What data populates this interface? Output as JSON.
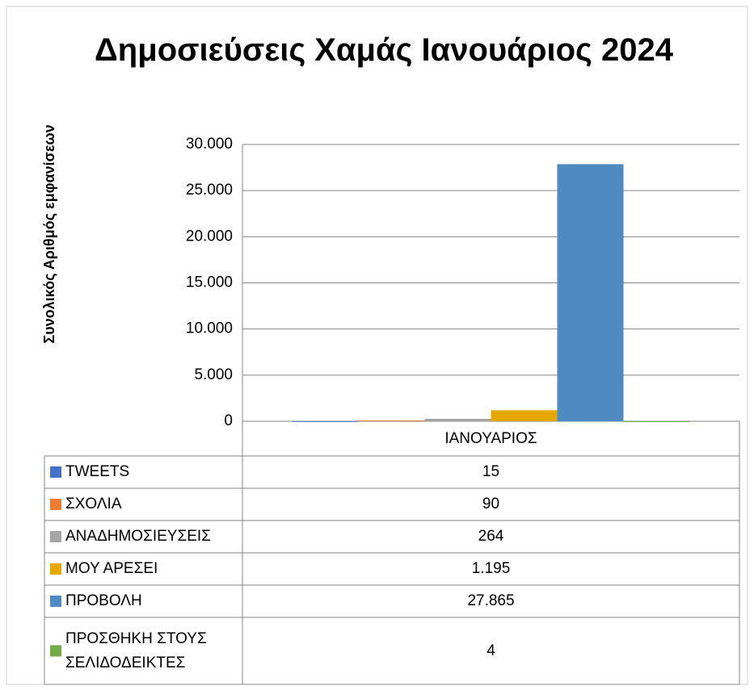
{
  "chart_data": {
    "type": "bar",
    "title": "Δημοσιεύσεις  Χαμάς Ιανουάριος 2024",
    "y_label": "Συνολικός Αριθμός εμφανίσεων",
    "categories": [
      "ΙΑΝΟΥΑΡΙΟΣ"
    ],
    "series": [
      {
        "name": "TWEETS",
        "color": "#4472c4",
        "values": [
          15
        ]
      },
      {
        "name": "ΣΧΟΛΙΑ",
        "color": "#ed7d31",
        "values": [
          90
        ]
      },
      {
        "name": "ΑΝΑΔΗΜΟΣΙΕΥΣΕΙΣ",
        "color": "#a5a5a5",
        "values": [
          264
        ]
      },
      {
        "name": "ΜΟΥ ΑΡΕΣΕΙ",
        "color": "#e6a800",
        "values": [
          1195
        ],
        "value_labels": [
          "1.195"
        ]
      },
      {
        "name": "ΠΡΟΒΟΛΗ",
        "color": "#4f8bc1",
        "values": [
          27865
        ],
        "value_labels": [
          "27.865"
        ]
      },
      {
        "name": "ΠΡΟΣΘΗΚΗ ΣΤΟΥΣ ΣΕΛΙΔΟΔΕΙΚΤΕΣ",
        "color": "#70ad47",
        "values": [
          4
        ]
      }
    ],
    "ylim": [
      0,
      30000
    ],
    "yticks": [
      0,
      {
        "value": 5000,
        "label": "5.000"
      },
      {
        "value": 10000,
        "label": "10.000"
      },
      {
        "value": 15000,
        "label": "15.000"
      },
      {
        "value": 20000,
        "label": "20.000"
      },
      {
        "value": 25000,
        "label": "25.000"
      },
      {
        "value": 30000,
        "label": "30.000"
      }
    ],
    "grid": true
  }
}
